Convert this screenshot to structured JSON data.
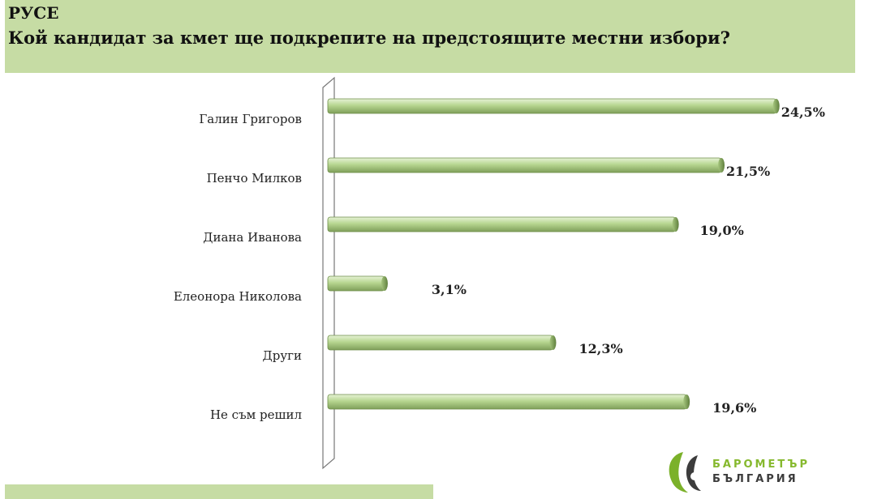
{
  "header": {
    "region": "РУСЕ",
    "question": "Кой кандидат за кмет ще подкрепите на предстоящите местни избори?"
  },
  "colors": {
    "header_bg": "#c6dca4",
    "bar_fill": "#b7d690",
    "bar_edge": "#6f8f4a"
  },
  "chart_data": {
    "type": "bar",
    "orientation": "horizontal",
    "categories": [
      "Галин Григоров",
      "Пенчо Милков",
      "Диана Иванова",
      "Елеонора Николова",
      "Други",
      "Не съм решил"
    ],
    "values": [
      24.5,
      21.5,
      19.0,
      3.1,
      12.3,
      19.6
    ],
    "value_labels": [
      "24,5%",
      "21,5%",
      "19,0%",
      "3,1%",
      "12,3%",
      "19,6%"
    ],
    "unit": "%",
    "xlim": [
      0,
      25
    ],
    "grid": false,
    "legend": "none",
    "title": "",
    "xlabel": "",
    "ylabel": ""
  },
  "logo": {
    "line1": "БАРОМЕТЪР",
    "line2": "БЪЛГАРИЯ"
  }
}
